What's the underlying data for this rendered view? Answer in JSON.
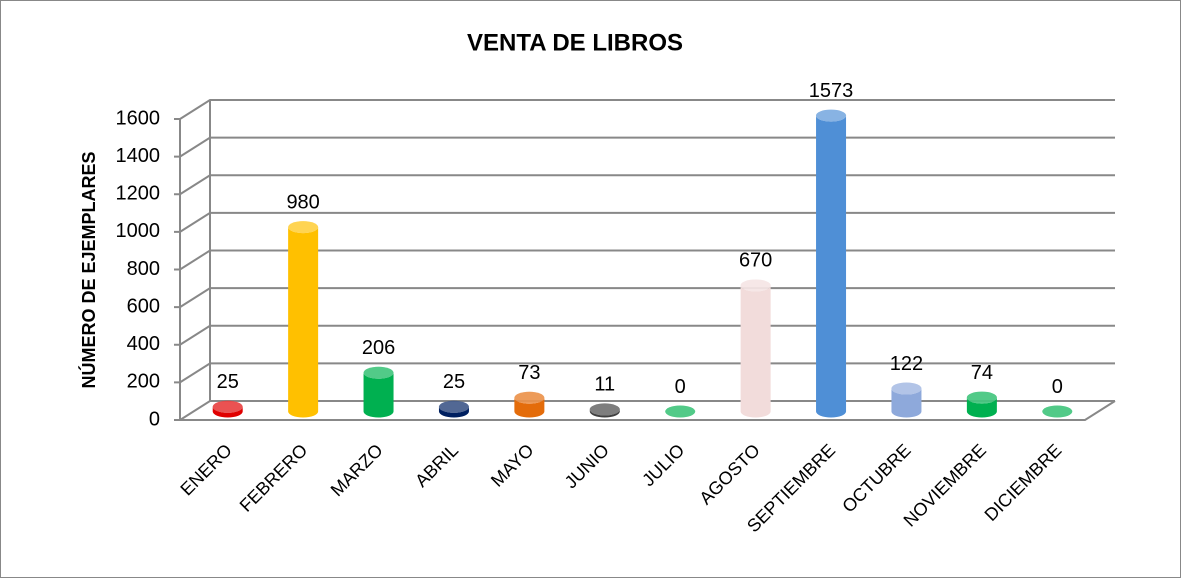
{
  "chart_data": {
    "type": "bar3d",
    "title": "VENTA DE LIBROS",
    "y_label": "NÚMERO DE EJEMPLARES",
    "categories": [
      "ENERO",
      "FEBRERO",
      "MARZO",
      "ABRIL",
      "MAYO",
      "JUNIO",
      "JULIO",
      "AGOSTO",
      "SEPTIEMBRE",
      "OCTUBRE",
      "NOVIEMBRE",
      "DICIEMBRE"
    ],
    "values": [
      25,
      980,
      206,
      25,
      73,
      11,
      0,
      670,
      1573,
      122,
      74,
      0
    ],
    "colors": [
      "#e00000",
      "#ffc000",
      "#00b050",
      "#002060",
      "#e46c0a",
      "#404040",
      "#00b050",
      "#f2dcdb",
      "#4f8fd6",
      "#8ea9db",
      "#00b050",
      "#00b050"
    ],
    "ylim": [
      0,
      1600
    ],
    "yticks": [
      0,
      200,
      400,
      600,
      800,
      1000,
      1200,
      1400,
      1600
    ],
    "grid": true
  }
}
